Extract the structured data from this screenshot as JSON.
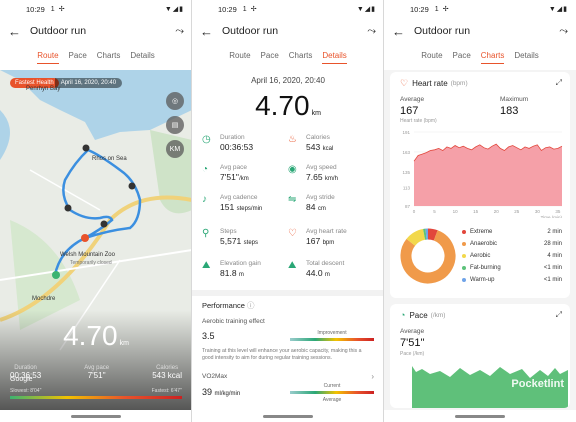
{
  "status": {
    "time": "10:29",
    "indicator": "1"
  },
  "app_title": "Outdoor run",
  "tabs": [
    "Route",
    "Pace",
    "Charts",
    "Details"
  ],
  "route_screen": {
    "chip_tag": "Fastest Health",
    "chip_date": "April 16, 2020, 20:40",
    "map_labels": {
      "bay": "Penrhyn Bay",
      "town": "Rhos on Sea",
      "zoo": "Welsh Mountain Zoo",
      "zoo_sub": "Temporarily closed",
      "mochdre": "Mochdre",
      "google": "Google"
    },
    "map_buttons": {
      "km": "KM"
    },
    "distance": "4.70",
    "distance_unit": "km",
    "stats": [
      {
        "label": "Duration",
        "value": "00:36:53"
      },
      {
        "label": "Avg pace",
        "value": "7'51''"
      },
      {
        "label": "Calories",
        "value": "543 kcal"
      }
    ],
    "bar_left": "Slowest: 8'04''",
    "bar_right": "Fastest: 6'47''"
  },
  "details_screen": {
    "date": "April 16, 2020, 20:40",
    "distance": "4.70",
    "distance_unit": "km",
    "metrics": [
      {
        "label": "Duration",
        "value": "00:36:53",
        "icon": "clock-icon"
      },
      {
        "label": "Calories",
        "value": "543",
        "unit": "kcal",
        "icon": "flame-icon"
      },
      {
        "label": "Avg pace",
        "value": "7'51''",
        "unit": "/km",
        "icon": "pace-icon"
      },
      {
        "label": "Avg speed",
        "value": "7.65",
        "unit": "km/h",
        "icon": "speed-icon"
      },
      {
        "label": "Avg cadence",
        "value": "151",
        "unit": "steps/min",
        "icon": "cadence-icon"
      },
      {
        "label": "Avg stride",
        "value": "84",
        "unit": "cm",
        "icon": "stride-icon"
      },
      {
        "label": "Steps",
        "value": "5,571",
        "unit": "steps",
        "icon": "steps-icon"
      },
      {
        "label": "Avg heart rate",
        "value": "167",
        "unit": "bpm",
        "icon": "heart-icon"
      },
      {
        "label": "Elevation gain",
        "value": "81.8",
        "unit": "m",
        "icon": "elevation-gain-icon"
      },
      {
        "label": "Total descent",
        "value": "44.0",
        "unit": "m",
        "icon": "descent-icon"
      }
    ],
    "performance_title": "Performance",
    "aerobic_label": "Aerobic training effect",
    "aerobic_value": "3.5",
    "aerobic_scale_label": "Improvement",
    "aerobic_note": "Training at this level will enhance your aerobic capacity, making this a good intensity to aim for during regular training sessions.",
    "vo2_label": "VO2Max",
    "vo2_value": "39",
    "vo2_unit": "ml/kg/min",
    "vo2_scale_top": "Current",
    "vo2_scale_bottom": "Average"
  },
  "charts_screen": {
    "heart_title": "Heart rate",
    "heart_unit": "(bpm)",
    "average_label": "Average",
    "average_value": "167",
    "average_sub": "Heart rate (bpm)",
    "maximum_label": "Maximum",
    "maximum_value": "183",
    "zones": [
      {
        "name": "Extreme",
        "value": "2 min",
        "color": "#e2463b"
      },
      {
        "name": "Anaerobic",
        "value": "28 min",
        "color": "#f09a4a"
      },
      {
        "name": "Aerobic",
        "value": "4 min",
        "color": "#f2d84b"
      },
      {
        "name": "Fat-burning",
        "value": "<1 min",
        "color": "#5dc27a"
      },
      {
        "name": "Warm-up",
        "value": "<1 min",
        "color": "#6fa3e8"
      }
    ],
    "pace_title": "Pace",
    "pace_unit": "(/km)",
    "pace_avg_label": "Average",
    "pace_avg_value": "7'51''",
    "pace_sub": "Pace (/km)",
    "watermark": "Pocketlint"
  },
  "chart_data": [
    {
      "type": "area",
      "title": "Heart rate",
      "xlabel": "Time (min)",
      "ylabel": "",
      "x_ticks": [
        0,
        5,
        10,
        15,
        20,
        25,
        30,
        35
      ],
      "y_ticks": [
        87,
        113,
        135,
        163,
        191
      ],
      "ylim": [
        87,
        191
      ],
      "x": [
        0,
        1,
        2,
        3,
        4,
        5,
        6,
        7,
        8,
        9,
        10,
        11,
        12,
        13,
        14,
        15,
        16,
        17,
        18,
        19,
        20,
        21,
        22,
        23,
        24,
        25,
        26,
        27,
        28,
        29,
        30,
        31,
        32,
        33,
        34,
        35,
        36
      ],
      "values": [
        150,
        158,
        160,
        162,
        165,
        166,
        168,
        165,
        170,
        168,
        172,
        169,
        171,
        168,
        166,
        170,
        173,
        169,
        167,
        171,
        174,
        168,
        165,
        170,
        172,
        169,
        166,
        170,
        168,
        171,
        173,
        165,
        169,
        170,
        167,
        168,
        171
      ]
    },
    {
      "type": "pie",
      "title": "",
      "categories": [
        "Extreme",
        "Anaerobic",
        "Aerobic",
        "Fat-burning",
        "Warm-up"
      ],
      "values": [
        2,
        28,
        4,
        0.5,
        0.5
      ]
    }
  ]
}
